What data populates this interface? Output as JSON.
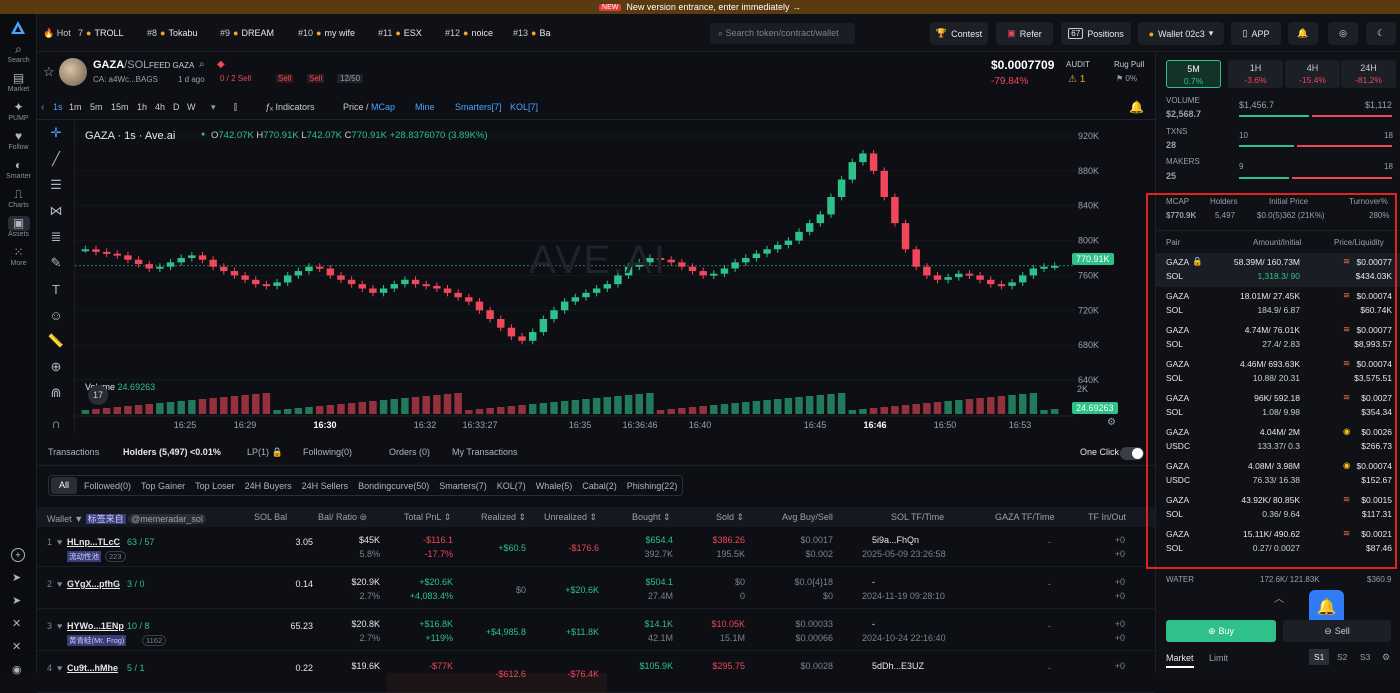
{
  "banner": {
    "badge": "NEW",
    "text": "New version entrance, enter immediately →"
  },
  "nav": [
    {
      "icon": "search-icon",
      "label": "Search"
    },
    {
      "icon": "market-icon",
      "label": "Market"
    },
    {
      "icon": "pump-icon",
      "label": "PUMP"
    },
    {
      "icon": "heart-icon",
      "label": "Follow"
    },
    {
      "icon": "smarter-icon",
      "label": "Smarter"
    },
    {
      "icon": "chart-icon",
      "label": "Charts"
    },
    {
      "icon": "assets-icon",
      "label": "Assets"
    },
    {
      "icon": "grid-icon",
      "label": "More"
    }
  ],
  "trending": [
    {
      "n": "Hot",
      "name": ""
    },
    {
      "n": "7",
      "name": "TROLL"
    },
    {
      "n": "#8",
      "name": "Tokabu"
    },
    {
      "n": "#9",
      "name": "DREAM"
    },
    {
      "n": "#10",
      "name": "my wife"
    },
    {
      "n": "#11",
      "name": "ESX"
    },
    {
      "n": "#12",
      "name": "noice"
    },
    {
      "n": "#13",
      "name": "Ba"
    }
  ],
  "search": {
    "placeholder": "Search token/contract/wallet"
  },
  "topbtns": {
    "contest": "Contest",
    "refer": "Refer",
    "positions_count": "67",
    "positions": "Positions",
    "wallet": "Wallet 02c3",
    "app": "APP"
  },
  "token": {
    "symbol": "GAZA",
    "quote": "/SOL",
    "feed": "FEED GAZA",
    "ca": "CA: a4Wc...BAGS",
    "age": "1 d ago",
    "sells": "0 / 2 Sell",
    "sell1": "Sell",
    "sell2": "Sell",
    "holders_ratio": "12/50",
    "price": "$0.0007709",
    "change": "-79.84%",
    "audit": "AUDIT",
    "audit_count": "1",
    "rug": "Rug Pull",
    "rug_pct": "0%"
  },
  "toolbar": {
    "intervals": [
      "1s",
      "1m",
      "5m",
      "15m",
      "1h",
      "4h",
      "D",
      "W"
    ],
    "indicators": "Indicators",
    "price": "Price",
    "mcap": "MCap",
    "mine": "Mine",
    "smarters": "Smarters[7]",
    "kol": "KOL[7]"
  },
  "chart_info": {
    "title": "GAZA · 1s · Ave.ai",
    "o": "742.07K",
    "h": "770.91K",
    "l": "742.07K",
    "c": "770.91K",
    "chg": "+28.8376070 (3.89K%)",
    "last": "770.91K",
    "vol_label": "Volume",
    "vol_val": "24.69263",
    "vol_last": "24.69263",
    "vol_axis": "2K",
    "watermark": "AVE.AI"
  },
  "chart_data": {
    "type": "candlestick",
    "y_ticks": [
      "920K",
      "880K",
      "840K",
      "800K",
      "760K",
      "720K",
      "680K",
      "640K"
    ],
    "ylim": [
      640,
      920
    ],
    "x_ticks": [
      "16:25",
      "16:29",
      "16:30",
      "16:32",
      "16:33:27",
      "16:35",
      "16:36:46",
      "16:40",
      "16:45",
      "16:46",
      "16:50",
      "16:53"
    ],
    "close": [
      790,
      787,
      785,
      783,
      778,
      773,
      768,
      770,
      775,
      780,
      783,
      778,
      770,
      765,
      760,
      755,
      750,
      748,
      752,
      760,
      765,
      770,
      768,
      760,
      755,
      750,
      745,
      740,
      745,
      750,
      755,
      750,
      748,
      745,
      740,
      735,
      730,
      720,
      710,
      700,
      690,
      685,
      695,
      710,
      720,
      730,
      735,
      740,
      745,
      750,
      760,
      770,
      775,
      780,
      778,
      775,
      770,
      765,
      760,
      762,
      768,
      775,
      780,
      785,
      790,
      795,
      800,
      810,
      820,
      830,
      850,
      870,
      890,
      900,
      880,
      850,
      820,
      790,
      770,
      760,
      755,
      758,
      762,
      760,
      755,
      750,
      748,
      752,
      760,
      768,
      770,
      771
    ]
  },
  "tabs": {
    "transactions": "Transactions",
    "holders": "Holders (5,497)",
    "holders_pct": "<0.01%",
    "lp": "LP(1)",
    "following": "Following(0)",
    "orders": "Orders (0)",
    "mytx": "My Transactions",
    "oneclick": "One Click"
  },
  "filters": [
    "All",
    "Followed(0)",
    "Top Gainer",
    "Top Loser",
    "24H Buyers",
    "24H Sellers",
    "Bondingcurve(50)",
    "Smarters(7)",
    "KOL(7)",
    "Whale(5)",
    "Cabal(2)",
    "Phishing(22)"
  ],
  "thead": {
    "wallet": "Wallet",
    "tag": "标签来自",
    "tag_user": "@memeradar_sol",
    "solbal": "SOL Bal",
    "balratio": "Bal/ Ratio",
    "totalpnl": "Total PnL",
    "realized": "Realized",
    "unrealized": "Unrealized",
    "bought": "Bought",
    "sold": "Sold",
    "avg": "Avg Buy/Sell",
    "soltf": "SOL TF/Time",
    "gazatf": "GAZA TF/Time",
    "tfin": "TF In/Out"
  },
  "rows": [
    {
      "idx": "1",
      "wallet": "HLnp...TLcC",
      "counts": "63 / 57",
      "tag": "流动性池",
      "tagn": "223",
      "sol": "3.05",
      "bal": "$45K",
      "ratio": "5.8%",
      "pnl": "-$116.1",
      "pnlp": "-17.7%",
      "real": "+$60.5",
      "unreal": "-$176.6",
      "bought": "$654.4",
      "boughtq": "392.7K",
      "sold": "$386.26",
      "soldq": "195.5K",
      "avg1": "$0.0017",
      "avg2": "$0.002",
      "soltf": "5i9a...FhQn",
      "soltime": "2025-05-09 23:26:58",
      "gaza": "-",
      "tfin": "+0",
      "tfout": "+0"
    },
    {
      "idx": "2",
      "wallet": "GYgX...pfhG",
      "counts": "3 / 0",
      "tag": "",
      "tagn": "",
      "sol": "0.14",
      "bal": "$20.9K",
      "ratio": "2.7%",
      "pnl": "+$20.6K",
      "pnlp": "+4,083.4%",
      "real": "$0",
      "unreal": "+$20.6K",
      "bought": "$504.1",
      "boughtq": "27.4M",
      "sold": "$0",
      "soldq": "0",
      "avg1": "$0.0{4}18",
      "avg2": "$0",
      "soltf": "-",
      "soltime": "2024-11-19 09:28:10",
      "gaza": "-",
      "tfin": "+0",
      "tfout": "+0"
    },
    {
      "idx": "3",
      "wallet": "HYWo...1ENp",
      "counts": "10 / 8",
      "tag": "黄青蛙(Mr. Frog)",
      "tagn": "1162",
      "sol": "65.23",
      "bal": "$20.8K",
      "ratio": "2.7%",
      "pnl": "+$16.8K",
      "pnlp": "+119%",
      "real": "+$4,985.8",
      "unreal": "+$11.8K",
      "bought": "$14.1K",
      "boughtq": "42.1M",
      "sold": "$10.05K",
      "soldq": "15.1M",
      "avg1": "$0.00033",
      "avg2": "$0.00066",
      "soltf": "-",
      "soltime": "2024-10-24 22:16:40",
      "gaza": "-",
      "tfin": "+0",
      "tfout": "+0"
    },
    {
      "idx": "4",
      "wallet": "Cu9t...hMhe",
      "counts": "5 / 1",
      "tag": "",
      "tagn": "",
      "sol": "0.22",
      "bal": "$19.6K",
      "ratio": "",
      "pnl": "-$77K",
      "pnlp": "",
      "real": "-$612.6",
      "unreal": "-$76.4K",
      "bought": "$105.9K",
      "boughtq": "",
      "sold": "$295.75",
      "soldq": "",
      "avg1": "$0.0028",
      "avg2": "",
      "soltf": "5dDh...E3UZ",
      "soltime": "",
      "gaza": "-",
      "tfin": "+0",
      "tfout": ""
    }
  ],
  "right": {
    "tfs": [
      {
        "l": "5M",
        "p": "0.7%"
      },
      {
        "l": "1H",
        "p": "-3.6%"
      },
      {
        "l": "4H",
        "p": "-15.4%"
      },
      {
        "l": "24H",
        "p": "-81.2%"
      }
    ],
    "volume_label": "VOLUME",
    "volume": "$2,568.7",
    "vol_buy": "$1,456.7",
    "vol_sell": "$1,112",
    "txns_label": "TXNS",
    "txns": "28",
    "tx_buy": "10",
    "tx_sell": "18",
    "makers_label": "MAKERS",
    "makers": "25",
    "mk_buy": "9",
    "mk_sell": "18",
    "mcap_label": "MCAP",
    "mcap": "$770.9K",
    "holders_label": "Holders",
    "holders": "5,497",
    "init_label": "Initial Price",
    "init": "$0.0(5)362 (21K%)",
    "turn_label": "Turnover%",
    "turn": "280%",
    "pair_h": "Pair",
    "amt_h": "Amount/Initial",
    "pl_h": "Price/Liquidity",
    "pairs": [
      {
        "a": "GAZA",
        "b": "SOL",
        "amt": "58.39M/ 160.73M",
        "amt2": "1,318.3/ 90",
        "price": "$0.00077",
        "liq": "$434.03K"
      },
      {
        "a": "GAZA",
        "b": "SOL",
        "amt": "18.01M/ 27.45K",
        "amt2": "184.9/ 6.87",
        "price": "$0.00074",
        "liq": "$60.74K"
      },
      {
        "a": "GAZA",
        "b": "SOL",
        "amt": "4.74M/ 76.01K",
        "amt2": "27.4/ 2.83",
        "price": "$0.00077",
        "liq": "$8,993.57"
      },
      {
        "a": "GAZA",
        "b": "SOL",
        "amt": "4.46M/ 693.63K",
        "amt2": "10.88/ 20.31",
        "price": "$0.00074",
        "liq": "$3,575.51"
      },
      {
        "a": "GAZA",
        "b": "SOL",
        "amt": "96K/ 592.18",
        "amt2": "1.08/ 9.98",
        "price": "$0.0027",
        "liq": "$354.34"
      },
      {
        "a": "GAZA",
        "b": "USDC",
        "amt": "4.04M/ 2M",
        "amt2": "133.37/ 0.3",
        "price": "$0.0026",
        "liq": "$266.73"
      },
      {
        "a": "GAZA",
        "b": "USDC",
        "amt": "4.08M/ 3.98M",
        "amt2": "76.33/ 16.38",
        "price": "$0.00074",
        "liq": "$152.67"
      },
      {
        "a": "GAZA",
        "b": "SOL",
        "amt": "43.92K/ 80.85K",
        "amt2": "0.36/ 9.64",
        "price": "$0.0015",
        "liq": "$117.31"
      },
      {
        "a": "GAZA",
        "b": "SOL",
        "amt": "15.11K/ 490.62",
        "amt2": "0.27/ 0.0027",
        "price": "$0.0021",
        "liq": "$87.46"
      }
    ],
    "water": "WATER",
    "water_amt": "172.6K/ 121.83K",
    "water_price": "$360.9",
    "buy": "Buy",
    "sell": "Sell",
    "market": "Market",
    "limit": "Limit",
    "s1": "S1",
    "s2": "S2",
    "s3": "S3"
  }
}
